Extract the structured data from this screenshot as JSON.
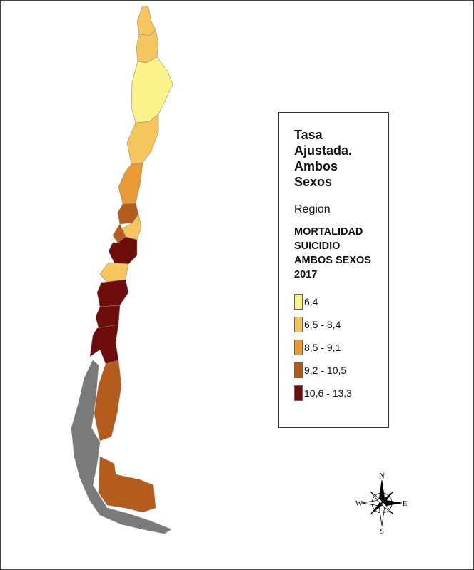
{
  "legend": {
    "title": "Tasa Ajustada. Ambos Sexos",
    "field": "Region",
    "subtitle": "MORTALIDAD SUICIDIO AMBOS SEXOS 2017",
    "items": [
      {
        "label": "6,4",
        "color": "#fbf28a"
      },
      {
        "label": "6,5 - 8,4",
        "color": "#f5c65d"
      },
      {
        "label": "8,5 - 9,1",
        "color": "#e89a36"
      },
      {
        "label": "9,2 - 10,5",
        "color": "#b45c1d"
      },
      {
        "label": "10,6 - 13,3",
        "color": "#6d0d0d"
      }
    ]
  },
  "compass": {
    "north": "N",
    "east": "E",
    "south": "S",
    "west": "W"
  }
}
